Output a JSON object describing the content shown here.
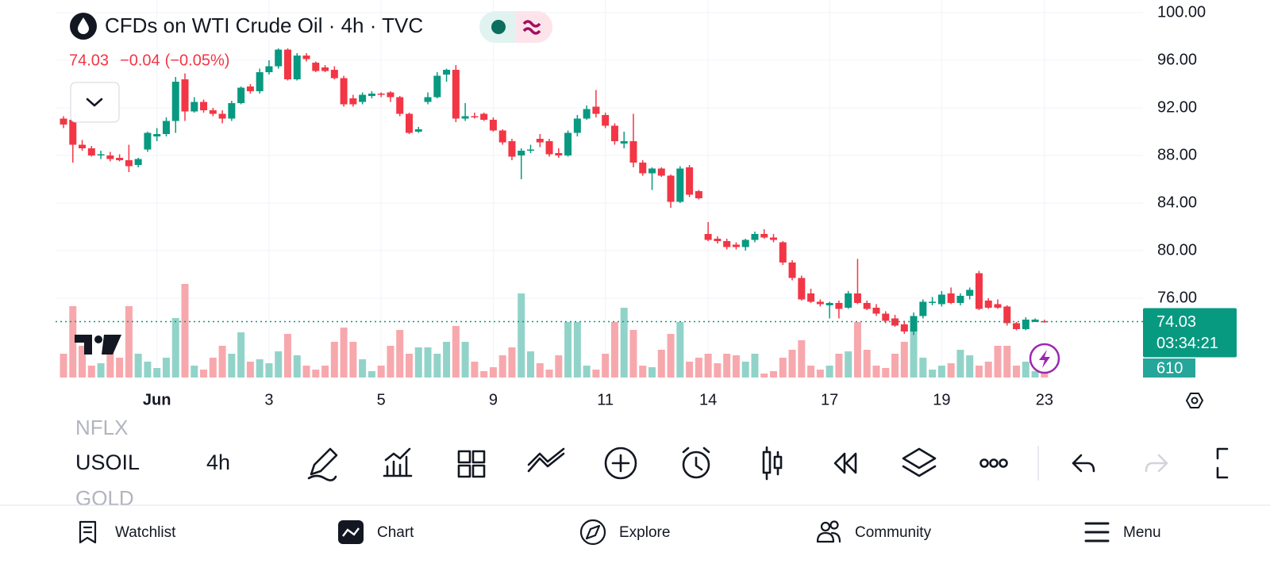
{
  "header": {
    "title": "CFDs on WTI Crude Oil · 4h · TVC",
    "change": "−0.04",
    "change_pct": "(−0.05%)"
  },
  "chart_data": {
    "type": "candlestick",
    "categories": [
      null,
      null,
      null,
      null,
      null,
      null,
      null,
      null,
      null,
      null,
      "Jun",
      null,
      null,
      null,
      null,
      null,
      null,
      null,
      null,
      null,
      null,
      null,
      "3",
      null,
      null,
      null,
      null,
      null,
      null,
      null,
      null,
      null,
      null,
      null,
      "5",
      null,
      null,
      null,
      null,
      null,
      null,
      null,
      null,
      null,
      null,
      null,
      "9",
      null,
      null,
      null,
      null,
      null,
      null,
      null,
      null,
      null,
      null,
      null,
      "11",
      null,
      null,
      null,
      null,
      null,
      null,
      null,
      null,
      null,
      null,
      "14",
      null,
      null,
      null,
      null,
      null,
      null,
      null,
      null,
      null,
      null,
      null,
      null,
      "17",
      null,
      null,
      null,
      null,
      null,
      null,
      null,
      null,
      null,
      null,
      null,
      "19",
      null,
      null,
      null,
      null,
      null,
      null,
      null,
      null,
      null,
      null,
      "23"
    ],
    "open": [
      91.1,
      91.0,
      88.9,
      88.6,
      88.0,
      88.0,
      87.8,
      87.6,
      87.2,
      88.5,
      89.6,
      89.8,
      90.9,
      94.4,
      91.7,
      92.5,
      91.8,
      91.5,
      91.1,
      92.4,
      93.8,
      93.4,
      95.0,
      95.5,
      96.9,
      94.4,
      96.4,
      95.8,
      95.4,
      95.2,
      94.5,
      92.8,
      92.5,
      93.0,
      93.2,
      93.3,
      92.9,
      91.5,
      90.0,
      92.5,
      92.9,
      94.8,
      95.2,
      91.1,
      91.3,
      91.5,
      91.0,
      90.1,
      89.2,
      88.0,
      88.4,
      89.4,
      89.2,
      88.2,
      88.0,
      89.9,
      91.1,
      92.1,
      91.4,
      90.5,
      89.0,
      89.2,
      87.4,
      86.5,
      86.9,
      86.3,
      84.1,
      87.0,
      85.0,
      81.4,
      81.0,
      80.8,
      80.5,
      80.3,
      80.9,
      81.4,
      81.1,
      80.7,
      79.0,
      77.7,
      76.4,
      75.7,
      75.4,
      75.6,
      75.2,
      76.4,
      75.6,
      75.2,
      74.7,
      74.3,
      73.8,
      73.2,
      74.5,
      75.6,
      75.5,
      76.4,
      75.6,
      76.2,
      78.1,
      75.8,
      75.5,
      75.3,
      73.9,
      73.4,
      74.0,
      74.07
    ],
    "high": [
      91.3,
      91.2,
      89.3,
      88.8,
      88.4,
      88.3,
      88.1,
      88.9,
      87.8,
      90.0,
      90.3,
      91.2,
      94.6,
      94.9,
      92.9,
      92.7,
      92.0,
      91.8,
      92.6,
      93.8,
      94.0,
      95.3,
      96.0,
      97.0,
      97.0,
      96.6,
      96.6,
      95.9,
      95.6,
      95.5,
      94.7,
      93.1,
      93.3,
      93.4,
      93.3,
      93.4,
      93.0,
      91.6,
      90.4,
      93.3,
      95.0,
      95.3,
      95.6,
      92.4,
      91.6,
      91.6,
      91.2,
      90.2,
      89.4,
      88.6,
      88.9,
      89.8,
      89.4,
      88.6,
      90.1,
      91.4,
      92.2,
      93.5,
      91.6,
      90.7,
      90.0,
      91.5,
      87.6,
      87.0,
      87.0,
      86.4,
      87.1,
      87.2,
      85.1,
      82.4,
      81.2,
      81.0,
      80.7,
      81.0,
      81.6,
      81.8,
      81.4,
      80.8,
      79.2,
      77.9,
      76.8,
      75.9,
      75.7,
      75.8,
      76.6,
      79.3,
      75.8,
      75.5,
      74.9,
      74.6,
      74.1,
      74.8,
      75.9,
      76.1,
      76.6,
      76.9,
      76.4,
      76.9,
      78.3,
      76.0,
      75.9,
      75.4,
      74.0,
      74.4,
      74.3,
      74.2
    ],
    "low": [
      90.3,
      87.4,
      88.4,
      87.9,
      87.7,
      87.5,
      87.5,
      86.6,
      87.0,
      88.3,
      89.2,
      89.6,
      89.9,
      90.9,
      91.6,
      91.6,
      91.3,
      90.7,
      90.9,
      92.3,
      93.2,
      93.2,
      94.8,
      95.3,
      94.3,
      94.3,
      95.9,
      95.0,
      95.0,
      94.4,
      92.1,
      92.1,
      92.3,
      92.8,
      92.9,
      92.5,
      91.3,
      89.8,
      89.9,
      92.3,
      92.8,
      94.2,
      90.8,
      90.9,
      91.1,
      90.9,
      90.0,
      88.9,
      87.6,
      86.0,
      88.2,
      88.7,
      87.9,
      87.8,
      87.9,
      89.6,
      91.0,
      91.2,
      90.3,
      88.9,
      88.6,
      87.0,
      86.3,
      85.1,
      86.2,
      83.6,
      84.0,
      84.5,
      84.3,
      80.8,
      80.6,
      80.1,
      80.1,
      80.0,
      80.7,
      81.0,
      80.7,
      78.8,
      77.5,
      75.8,
      75.6,
      75.3,
      74.3,
      74.3,
      75.1,
      75.5,
      75.0,
      74.5,
      73.9,
      73.6,
      73.0,
      72.9,
      74.3,
      75.4,
      75.3,
      75.5,
      75.4,
      75.9,
      75.0,
      75.1,
      75.1,
      73.7,
      73.3,
      73.3,
      74.0,
      73.95
    ],
    "close": [
      90.6,
      88.9,
      88.6,
      88.0,
      88.1,
      87.7,
      87.6,
      87.1,
      87.7,
      89.9,
      89.8,
      90.9,
      94.2,
      91.7,
      92.5,
      91.8,
      91.5,
      91.1,
      92.4,
      93.7,
      93.4,
      95.0,
      95.5,
      96.9,
      94.4,
      96.4,
      96.1,
      95.1,
      95.1,
      94.5,
      92.3,
      92.3,
      93.1,
      93.2,
      93.1,
      92.9,
      91.5,
      89.9,
      90.2,
      92.9,
      94.7,
      95.2,
      91.1,
      91.3,
      91.2,
      91.0,
      90.1,
      89.1,
      87.9,
      88.4,
      88.5,
      89.1,
      88.1,
      88.0,
      89.9,
      91.1,
      91.9,
      91.5,
      90.5,
      89.2,
      89.2,
      87.4,
      86.5,
      86.9,
      86.3,
      84.1,
      86.9,
      84.7,
      84.4,
      80.9,
      80.8,
      80.3,
      80.3,
      80.9,
      81.4,
      81.1,
      80.9,
      79.0,
      77.7,
      75.9,
      75.7,
      75.5,
      75.6,
      75.1,
      76.4,
      75.6,
      75.1,
      74.7,
      74.1,
      73.7,
      73.2,
      74.5,
      75.7,
      75.7,
      76.3,
      75.6,
      76.2,
      76.7,
      75.1,
      75.2,
      75.2,
      73.9,
      73.4,
      74.2,
      74.2,
      74.03
    ],
    "volume": [
      900,
      2700,
      1200,
      450,
      540,
      1050,
      750,
      2700,
      900,
      600,
      360,
      750,
      2250,
      3540,
      450,
      300,
      750,
      1200,
      900,
      1710,
      600,
      690,
      540,
      990,
      1650,
      840,
      450,
      300,
      450,
      1350,
      1890,
      1350,
      690,
      240,
      450,
      1200,
      1800,
      900,
      1140,
      1140,
      900,
      1350,
      1950,
      1350,
      600,
      240,
      390,
      840,
      1140,
      3180,
      990,
      540,
      300,
      840,
      2100,
      2100,
      450,
      300,
      900,
      2100,
      2640,
      1800,
      450,
      390,
      1050,
      1650,
      2100,
      600,
      750,
      900,
      540,
      900,
      840,
      600,
      900,
      150,
      240,
      750,
      1050,
      1410,
      450,
      300,
      450,
      900,
      990,
      2100,
      1050,
      450,
      360,
      900,
      1350,
      1800,
      750,
      300,
      450,
      540,
      1050,
      840,
      450,
      600,
      1200,
      1200,
      450,
      600,
      240,
      610
    ],
    "ylim": [
      69.33,
      101.07
    ],
    "yticks": [
      {
        "value": 100,
        "label": "100.00"
      },
      {
        "value": 96,
        "label": "96.00"
      },
      {
        "value": 92,
        "label": "92.00"
      },
      {
        "value": 88,
        "label": "88.00"
      },
      {
        "value": 84,
        "label": "84.00"
      },
      {
        "value": 80,
        "label": "80.00"
      },
      {
        "value": 76,
        "label": "76.00"
      }
    ],
    "volume_lim": [
      0,
      3600
    ],
    "grid": true,
    "up_color": "#089981",
    "down_color": "#f23645",
    "volume_up_color": "#92d3c9",
    "volume_down_color": "#f7a8ad",
    "countdown": "03:34:21"
  },
  "toolbar": {
    "symbols": [
      "NFLX",
      "USOIL",
      "GOLD"
    ],
    "interval": "4h"
  },
  "nav": [
    "Watchlist",
    "Chart",
    "Explore",
    "Community",
    "Menu"
  ]
}
